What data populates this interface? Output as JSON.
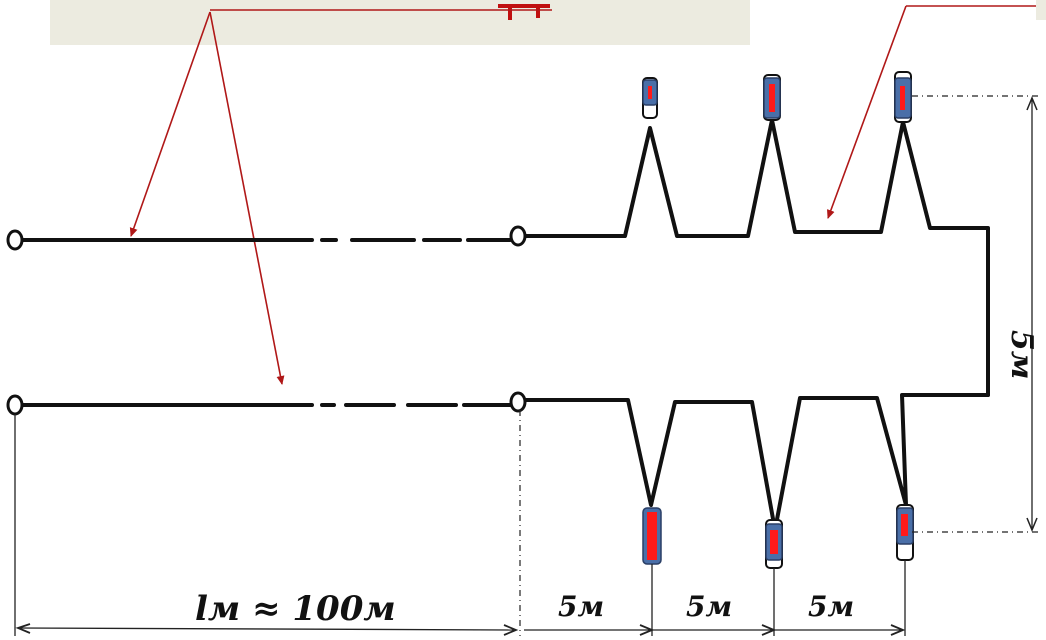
{
  "labels": {
    "length_label": "lм ≈ 100м",
    "spacing_1": "5м",
    "spacing_2": "5м",
    "spacing_3": "5м",
    "height_label": "5м"
  },
  "colors": {
    "banner": "#ecebe0",
    "arrow": "#b01818",
    "sensor_body": "#4a6fa8",
    "sensor_core": "#ff1a1a"
  }
}
